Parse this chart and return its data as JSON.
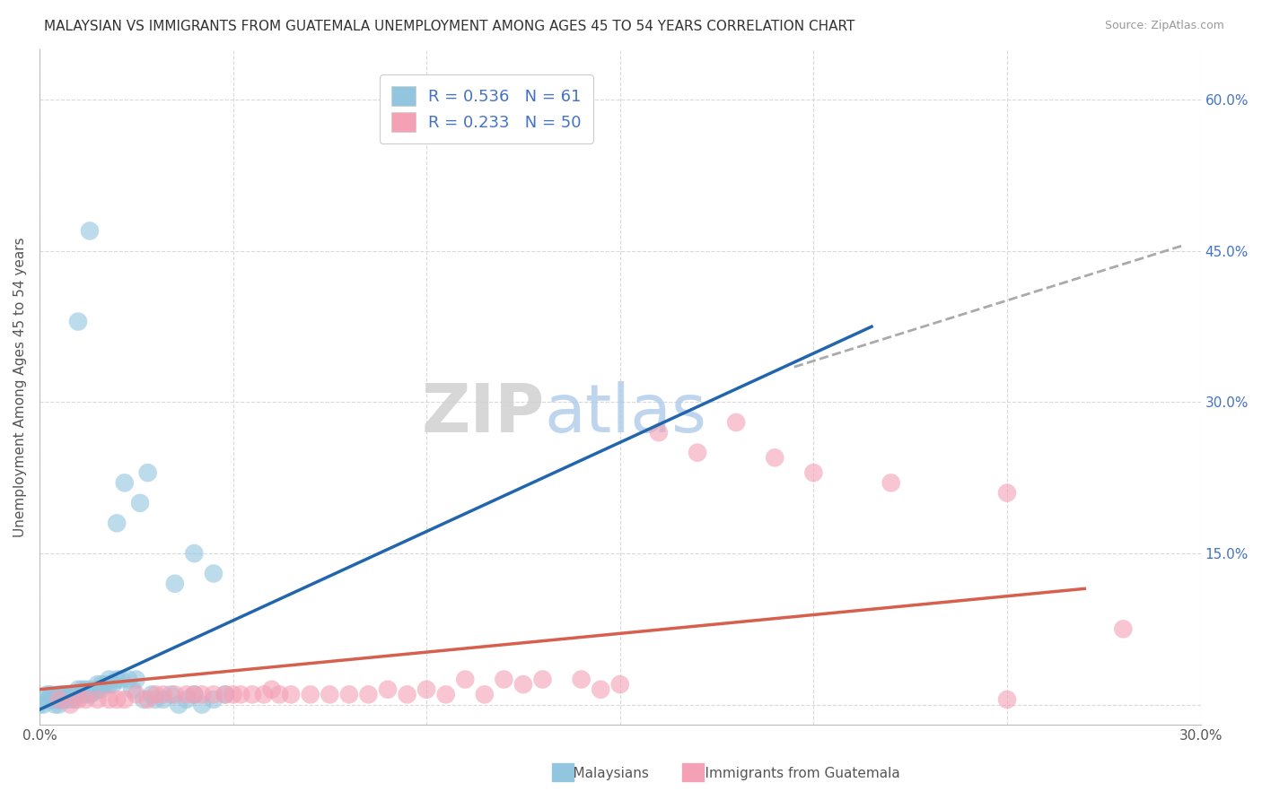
{
  "title": "MALAYSIAN VS IMMIGRANTS FROM GUATEMALA UNEMPLOYMENT AMONG AGES 45 TO 54 YEARS CORRELATION CHART",
  "source": "Source: ZipAtlas.com",
  "ylabel": "Unemployment Among Ages 45 to 54 years",
  "xlim": [
    0.0,
    0.3
  ],
  "ylim": [
    -0.02,
    0.65
  ],
  "xticks": [
    0.0,
    0.05,
    0.1,
    0.15,
    0.2,
    0.25,
    0.3
  ],
  "ytick_right": [
    0.0,
    0.15,
    0.3,
    0.45,
    0.6
  ],
  "legend1_r": "0.536",
  "legend1_n": "61",
  "legend2_r": "0.233",
  "legend2_n": "50",
  "blue_color": "#92c5de",
  "pink_color": "#f4a0b5",
  "blue_line_color": "#2166ac",
  "pink_line_color": "#d6604d",
  "watermark_zip": "ZIP",
  "watermark_atlas": "atlas",
  "grid_color": "#d9d9d9",
  "blue_line_x0": 0.0,
  "blue_line_y0": -0.005,
  "blue_line_x1": 0.215,
  "blue_line_y1": 0.375,
  "pink_line_x0": 0.0,
  "pink_line_y0": 0.015,
  "pink_line_x1": 0.27,
  "pink_line_y1": 0.115,
  "dash_line_x0": 0.195,
  "dash_line_y0": 0.335,
  "dash_line_x1": 0.295,
  "dash_line_y1": 0.455,
  "blue_points": [
    [
      0.0,
      0.0
    ],
    [
      0.001,
      0.0
    ],
    [
      0.002,
      0.005
    ],
    [
      0.002,
      0.01
    ],
    [
      0.003,
      0.005
    ],
    [
      0.003,
      0.01
    ],
    [
      0.004,
      0.0
    ],
    [
      0.004,
      0.005
    ],
    [
      0.005,
      0.0
    ],
    [
      0.005,
      0.005
    ],
    [
      0.005,
      0.01
    ],
    [
      0.006,
      0.005
    ],
    [
      0.006,
      0.01
    ],
    [
      0.007,
      0.005
    ],
    [
      0.007,
      0.01
    ],
    [
      0.008,
      0.005
    ],
    [
      0.008,
      0.01
    ],
    [
      0.009,
      0.005
    ],
    [
      0.009,
      0.01
    ],
    [
      0.01,
      0.01
    ],
    [
      0.01,
      0.015
    ],
    [
      0.011,
      0.01
    ],
    [
      0.011,
      0.015
    ],
    [
      0.012,
      0.01
    ],
    [
      0.012,
      0.015
    ],
    [
      0.013,
      0.01
    ],
    [
      0.013,
      0.015
    ],
    [
      0.014,
      0.012
    ],
    [
      0.015,
      0.015
    ],
    [
      0.015,
      0.02
    ],
    [
      0.016,
      0.015
    ],
    [
      0.016,
      0.02
    ],
    [
      0.017,
      0.02
    ],
    [
      0.018,
      0.02
    ],
    [
      0.018,
      0.025
    ],
    [
      0.019,
      0.02
    ],
    [
      0.02,
      0.025
    ],
    [
      0.02,
      0.18
    ],
    [
      0.021,
      0.025
    ],
    [
      0.022,
      0.22
    ],
    [
      0.023,
      0.025
    ],
    [
      0.024,
      0.015
    ],
    [
      0.025,
      0.025
    ],
    [
      0.026,
      0.2
    ],
    [
      0.027,
      0.005
    ],
    [
      0.028,
      0.23
    ],
    [
      0.029,
      0.01
    ],
    [
      0.03,
      0.005
    ],
    [
      0.032,
      0.005
    ],
    [
      0.034,
      0.01
    ],
    [
      0.035,
      0.12
    ],
    [
      0.036,
      0.0
    ],
    [
      0.038,
      0.005
    ],
    [
      0.04,
      0.01
    ],
    [
      0.04,
      0.15
    ],
    [
      0.042,
      0.0
    ],
    [
      0.045,
      0.005
    ],
    [
      0.045,
      0.13
    ],
    [
      0.048,
      0.01
    ],
    [
      0.01,
      0.38
    ],
    [
      0.013,
      0.47
    ]
  ],
  "pink_points": [
    [
      0.005,
      0.005
    ],
    [
      0.008,
      0.0
    ],
    [
      0.01,
      0.005
    ],
    [
      0.012,
      0.005
    ],
    [
      0.015,
      0.005
    ],
    [
      0.018,
      0.005
    ],
    [
      0.02,
      0.005
    ],
    [
      0.022,
      0.005
    ],
    [
      0.025,
      0.01
    ],
    [
      0.028,
      0.005
    ],
    [
      0.03,
      0.01
    ],
    [
      0.032,
      0.01
    ],
    [
      0.035,
      0.01
    ],
    [
      0.038,
      0.01
    ],
    [
      0.04,
      0.01
    ],
    [
      0.042,
      0.01
    ],
    [
      0.045,
      0.01
    ],
    [
      0.048,
      0.01
    ],
    [
      0.05,
      0.01
    ],
    [
      0.052,
      0.01
    ],
    [
      0.055,
      0.01
    ],
    [
      0.058,
      0.01
    ],
    [
      0.06,
      0.015
    ],
    [
      0.062,
      0.01
    ],
    [
      0.065,
      0.01
    ],
    [
      0.07,
      0.01
    ],
    [
      0.075,
      0.01
    ],
    [
      0.08,
      0.01
    ],
    [
      0.085,
      0.01
    ],
    [
      0.09,
      0.015
    ],
    [
      0.095,
      0.01
    ],
    [
      0.1,
      0.015
    ],
    [
      0.105,
      0.01
    ],
    [
      0.11,
      0.025
    ],
    [
      0.115,
      0.01
    ],
    [
      0.12,
      0.025
    ],
    [
      0.125,
      0.02
    ],
    [
      0.13,
      0.025
    ],
    [
      0.14,
      0.025
    ],
    [
      0.145,
      0.015
    ],
    [
      0.15,
      0.02
    ],
    [
      0.16,
      0.27
    ],
    [
      0.17,
      0.25
    ],
    [
      0.18,
      0.28
    ],
    [
      0.19,
      0.245
    ],
    [
      0.2,
      0.23
    ],
    [
      0.22,
      0.22
    ],
    [
      0.25,
      0.21
    ],
    [
      0.25,
      0.005
    ],
    [
      0.28,
      0.075
    ]
  ]
}
